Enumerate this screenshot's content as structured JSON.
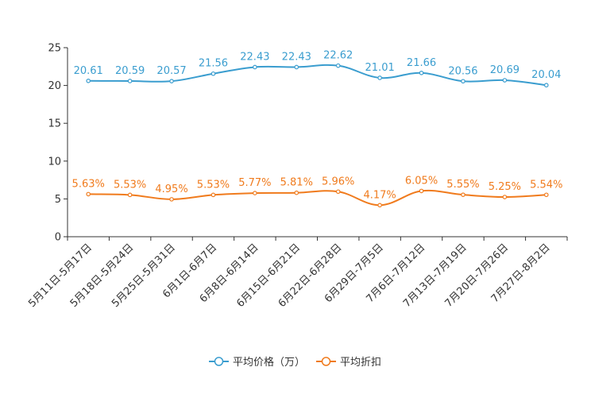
{
  "chart_data": {
    "type": "line",
    "categories": [
      "5月11日-5月17日",
      "5月18日-5月24日",
      "5月25日-5月31日",
      "6月1日-6月7日",
      "6月8日-6月14日",
      "6月15日-6月21日",
      "6月22日-6月28日",
      "6月29日-7月5日",
      "7月6日-7月12日",
      "7月13日-7月19日",
      "7月20日-7月26日",
      "7月27日-8月2日"
    ],
    "ylim": [
      0,
      25
    ],
    "yticks": [
      "0",
      "5",
      "10",
      "15",
      "20",
      "25"
    ],
    "series": [
      {
        "name": "平均价格（万）",
        "color": "#3a9dcf",
        "values": [
          20.61,
          20.59,
          20.57,
          21.56,
          22.43,
          22.43,
          22.62,
          21.01,
          21.66,
          20.56,
          20.69,
          20.04
        ],
        "labels": [
          "20.61",
          "20.59",
          "20.57",
          "21.56",
          "22.43",
          "22.43",
          "22.62",
          "21.01",
          "21.66",
          "20.56",
          "20.69",
          "20.04"
        ]
      },
      {
        "name": "平均折扣",
        "color": "#f07b1d",
        "values": [
          5.63,
          5.53,
          4.95,
          5.53,
          5.77,
          5.81,
          5.96,
          4.17,
          6.05,
          5.55,
          5.25,
          5.54
        ],
        "labels": [
          "5.63%",
          "5.53%",
          "4.95%",
          "5.53%",
          "5.77%",
          "5.81%",
          "5.96%",
          "4.17%",
          "6.05%",
          "5.55%",
          "5.25%",
          "5.54%"
        ]
      }
    ],
    "legend": "bottom-center"
  }
}
